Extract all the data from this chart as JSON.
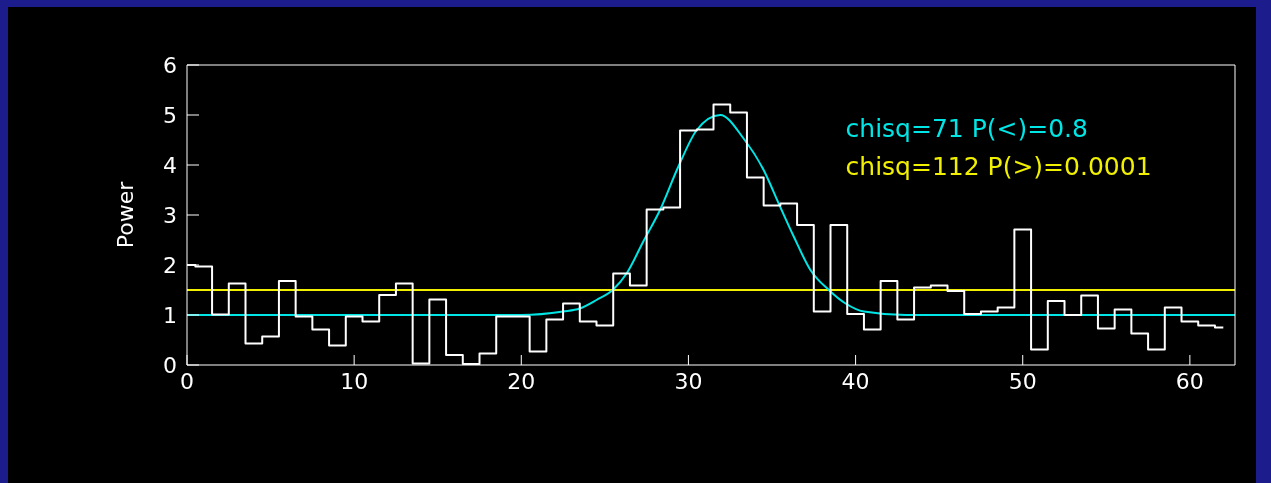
{
  "chart_data": {
    "type": "step",
    "ylabel": "Power",
    "xlim": [
      0,
      62.7
    ],
    "xticks": [
      0,
      10,
      20,
      30,
      40,
      50,
      60
    ],
    "ylim": [
      0,
      6
    ],
    "yticks": [
      0,
      1,
      2,
      3,
      4,
      5,
      6
    ],
    "annotations": [
      "chisq=71 P(<)=0.8",
      "chisq=112 P(>)=0.0001"
    ],
    "series": [
      {
        "type": "step",
        "color": "#ffffff",
        "x": [
          0,
          1,
          2,
          3,
          4,
          5,
          6,
          7,
          8,
          9,
          10,
          11,
          12,
          13,
          14,
          15,
          16,
          17,
          18,
          19,
          20,
          21,
          22,
          23,
          24,
          25,
          26,
          27,
          28,
          29,
          30,
          31,
          32,
          33,
          34,
          35,
          36,
          37,
          38,
          39,
          40,
          41,
          42,
          43,
          44,
          45,
          46,
          47,
          48,
          49,
          50,
          51,
          52,
          53,
          54,
          55,
          56,
          57,
          58,
          59,
          60,
          61,
          62
        ],
        "values": [
          2.0,
          1.97,
          1.01,
          1.63,
          0.43,
          0.57,
          1.68,
          0.97,
          0.71,
          0.39,
          0.97,
          0.87,
          1.4,
          1.63,
          0.03,
          1.31,
          0.2,
          0.02,
          0.23,
          0.97,
          0.97,
          0.27,
          0.91,
          1.23,
          0.87,
          0.79,
          1.83,
          1.59,
          3.11,
          3.15,
          4.69,
          4.71,
          5.21,
          5.05,
          3.75,
          3.19,
          3.23,
          2.8,
          1.07,
          2.8,
          1.02,
          0.71,
          1.68,
          0.91,
          1.55,
          1.59,
          1.48,
          1.02,
          1.07,
          1.15,
          2.71,
          0.31,
          1.28,
          1.0,
          1.39,
          0.73,
          1.11,
          0.63,
          0.31,
          1.15,
          0.87,
          0.79,
          0.75
        ]
      },
      {
        "type": "line",
        "color": "#00e5e5",
        "x": [
          0,
          20,
          22.5,
          23.5,
          24.5,
          25.5,
          26.3,
          27.3,
          28.3,
          29.4,
          30.5,
          31.9,
          33.3,
          34.5,
          35.4,
          36.3,
          37.3,
          38.4,
          39.4,
          40.5,
          43,
          62.7
        ],
        "values": [
          1.0,
          1.0,
          1.07,
          1.13,
          1.3,
          1.51,
          1.83,
          2.47,
          3.1,
          3.97,
          4.7,
          5.0,
          4.53,
          3.9,
          3.23,
          2.57,
          1.9,
          1.5,
          1.23,
          1.07,
          1.0,
          1.0
        ]
      },
      {
        "type": "line",
        "color": "#f0f000",
        "x": [
          0,
          62.7
        ],
        "values": [
          1.5,
          1.5
        ]
      }
    ]
  }
}
